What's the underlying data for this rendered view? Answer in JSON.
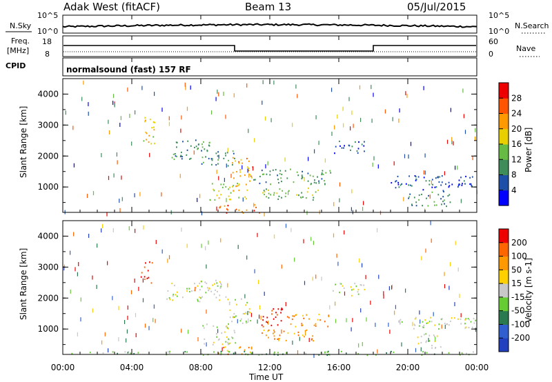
{
  "header": {
    "radar": "Adak West (fitACF)",
    "beam": "Beam 13",
    "date": "05/Jul/2015"
  },
  "top_panels": {
    "nsky_label": "N.Sky",
    "nsearch_label": "N.Search",
    "nsky_ticks": [
      "10^5",
      "10^0"
    ],
    "nsearch_ticks": [
      "10^5",
      "10^0"
    ],
    "freq_label_1": "Freq.",
    "freq_label_2": "[MHz]",
    "freq_ticks": [
      "18",
      "8"
    ],
    "nave_label": "Nave",
    "nave_ticks": [
      "60",
      "0"
    ],
    "cpid_label": "CPID",
    "cpid_text": "normalsound (fast) 157 RF"
  },
  "x_axis": {
    "label": "Time UT",
    "ticks": [
      "00:00",
      "04:00",
      "08:00",
      "12:00",
      "16:00",
      "20:00",
      "00:00"
    ]
  },
  "colors": {
    "power": [
      "#0000ff",
      "#1e4fa8",
      "#3d8c5a",
      "#66bb44",
      "#e8d000",
      "#ff9900",
      "#ff5500",
      "#ee0000"
    ],
    "velocity": [
      "#2040c0",
      "#3060d0",
      "#2a7a50",
      "#66cc33",
      "#c8c8c8",
      "#ffd000",
      "#ff9900",
      "#ff6600",
      "#ee0000"
    ]
  },
  "chart_data": [
    {
      "type": "heatmap",
      "panel": "power",
      "ylabel": "Slant Range [km]",
      "yticks": [
        "4000",
        "3000",
        "2000",
        "1000"
      ],
      "ylim": [
        180,
        4500
      ],
      "xlim_hours": [
        0,
        24
      ],
      "colorbar_label": "Power [dB]",
      "colorbar_ticks": [
        "28",
        "24",
        "20",
        "16",
        "12",
        "8",
        "4"
      ],
      "scatter_regions": [
        {
          "t0": 4.5,
          "t1": 5.3,
          "r0": 2400,
          "r1": 3300,
          "level": 4
        },
        {
          "t0": 6.3,
          "t1": 8.5,
          "r0": 1900,
          "r1": 2600,
          "level": 2
        },
        {
          "t0": 8.0,
          "t1": 10.0,
          "r0": 1700,
          "r1": 2200,
          "level": 2
        },
        {
          "t0": 9.8,
          "t1": 11.0,
          "r0": 1200,
          "r1": 2000,
          "level": 5
        },
        {
          "t0": 11.0,
          "t1": 15.5,
          "r0": 1100,
          "r1": 1600,
          "level": 2
        },
        {
          "t0": 8.5,
          "t1": 10.8,
          "r0": 600,
          "r1": 1200,
          "level": 4
        },
        {
          "t0": 11.5,
          "t1": 15.0,
          "r0": 600,
          "r1": 1000,
          "level": 3
        },
        {
          "t0": 15.5,
          "t1": 17.5,
          "r0": 2100,
          "r1": 2500,
          "level": 1
        },
        {
          "t0": 19.0,
          "t1": 24.0,
          "r0": 900,
          "r1": 1400,
          "level": 1
        },
        {
          "t0": 20.0,
          "t1": 22.5,
          "r0": 400,
          "r1": 900,
          "level": 2
        },
        {
          "t0": 9.0,
          "t1": 11.5,
          "r0": 180,
          "r1": 450,
          "level": 6
        }
      ]
    },
    {
      "type": "heatmap",
      "panel": "velocity",
      "ylabel": "Slant Range [km]",
      "yticks": [
        "4000",
        "3000",
        "2000",
        "1000"
      ],
      "ylim": [
        180,
        4500
      ],
      "xlim_hours": [
        0,
        24
      ],
      "colorbar_label": "Velocity [m s-1]",
      "colorbar_ticks": [
        "200",
        "100",
        "50",
        "15",
        "-15",
        "-50",
        "-100",
        "-200"
      ],
      "scatter_regions": [
        {
          "t0": 4.5,
          "t1": 5.2,
          "r0": 2500,
          "r1": 3200,
          "level": 8
        },
        {
          "t0": 6.0,
          "t1": 9.5,
          "r0": 1900,
          "r1": 2600,
          "level": 4
        },
        {
          "t0": 9.5,
          "t1": 11.0,
          "r0": 1200,
          "r1": 2000,
          "level": 4
        },
        {
          "t0": 11.5,
          "t1": 13.0,
          "r0": 1100,
          "r1": 1700,
          "level": 8
        },
        {
          "t0": 13.0,
          "t1": 15.5,
          "r0": 1100,
          "r1": 1500,
          "level": 6
        },
        {
          "t0": 8.0,
          "t1": 10.0,
          "r0": 500,
          "r1": 1200,
          "level": 4
        },
        {
          "t0": 11.5,
          "t1": 14.5,
          "r0": 600,
          "r1": 1000,
          "level": 6
        },
        {
          "t0": 15.5,
          "t1": 17.5,
          "r0": 2100,
          "r1": 2500,
          "level": 4
        },
        {
          "t0": 19.0,
          "t1": 24.0,
          "r0": 1000,
          "r1": 1400,
          "level": 4
        },
        {
          "t0": 20.5,
          "t1": 22.0,
          "r0": 400,
          "r1": 900,
          "level": 4
        },
        {
          "t0": 9.0,
          "t1": 11.0,
          "r0": 180,
          "r1": 450,
          "level": 6
        },
        {
          "t0": 0.0,
          "t1": 24.0,
          "r0": 180,
          "r1": 300,
          "level": 3
        }
      ]
    }
  ]
}
